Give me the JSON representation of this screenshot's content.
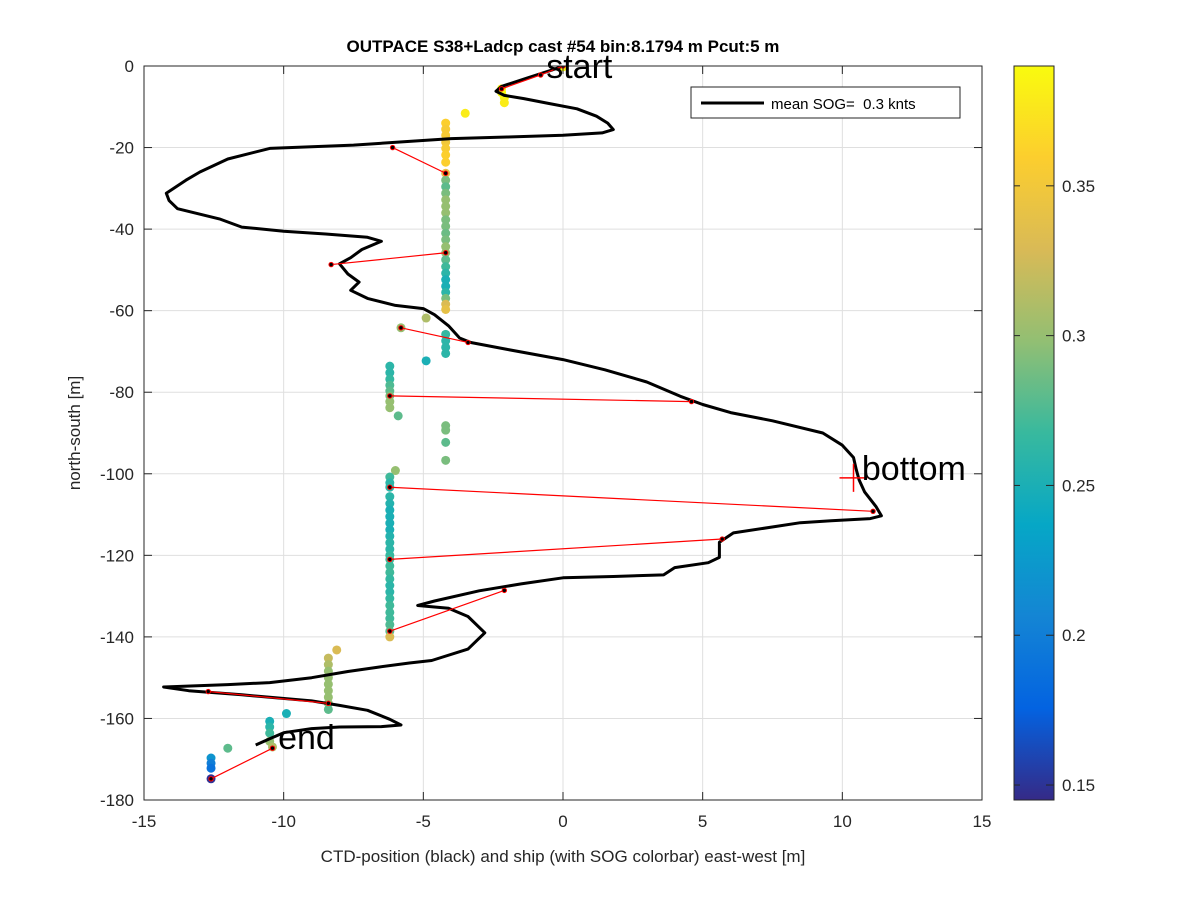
{
  "chart_data": {
    "type": "scatter",
    "title": "OUTPACE S38+Ladcp cast #54 bin:8.1794 m  Pcut:5 m",
    "xlabel": "CTD-position (black) and ship (with SOG colorbar) east-west [m]",
    "ylabel": "north-south [m]",
    "xlim": [
      -15,
      15
    ],
    "ylim": [
      -180,
      0
    ],
    "x_ticks": [
      "-15",
      "-10",
      "-5",
      "0",
      "5",
      "10",
      "15"
    ],
    "y_ticks": [
      "0",
      "-20",
      "-40",
      "-60",
      "-80",
      "-100",
      "-120",
      "-140",
      "-160",
      "-180"
    ],
    "grid": true,
    "legend": {
      "position": "top-right",
      "entries": [
        "mean SOG=  0.3 knts"
      ]
    },
    "annotations": [
      {
        "text": "start",
        "x": -0.6,
        "y": -3
      },
      {
        "text": "bottom",
        "x": 10.7,
        "y": -101.5
      },
      {
        "text": "end",
        "x": -10.2,
        "y": -167.5
      }
    ],
    "bottom_marker": {
      "x": 10.4,
      "y": -101
    },
    "colorbar": {
      "range": [
        0.145,
        0.39
      ],
      "ticks": [
        "0.15",
        "0.2",
        "0.25",
        "0.3",
        "0.35"
      ],
      "colormap": [
        "#352a87",
        "#0363e1",
        "#1485d4",
        "#06a7c6",
        "#38b99e",
        "#92bf73",
        "#d9ba56",
        "#fcce2e",
        "#f9fb0e"
      ]
    },
    "ctd_track_color": "#000000",
    "segment_color": "#ff0000",
    "ctd_track": [
      [
        0,
        0
      ],
      [
        -0.4,
        -1
      ],
      [
        -1.3,
        -3
      ],
      [
        -2.2,
        -5
      ],
      [
        -2.4,
        -6.2
      ],
      [
        -2.1,
        -7.2
      ],
      [
        -1.4,
        -8
      ],
      [
        -0.5,
        -9.2
      ],
      [
        0.5,
        -10.5
      ],
      [
        1.2,
        -12.3
      ],
      [
        1.6,
        -14
      ],
      [
        1.8,
        -15.6
      ],
      [
        1.4,
        -16.4
      ],
      [
        0,
        -17
      ],
      [
        -2,
        -17.4
      ],
      [
        -4,
        -17.8
      ],
      [
        -5.5,
        -18.5
      ],
      [
        -7.5,
        -19.4
      ],
      [
        -9,
        -19.8
      ],
      [
        -10.5,
        -20.2
      ],
      [
        -12,
        -22.8
      ],
      [
        -13,
        -26
      ],
      [
        -13.5,
        -28
      ],
      [
        -14.2,
        -31.2
      ],
      [
        -14.1,
        -33
      ],
      [
        -13.8,
        -35
      ],
      [
        -12.3,
        -37.5
      ],
      [
        -11.5,
        -39.5
      ],
      [
        -10,
        -40.5
      ],
      [
        -8.5,
        -41.2
      ],
      [
        -7,
        -42
      ],
      [
        -6.5,
        -43
      ],
      [
        -7.2,
        -45
      ],
      [
        -7.6,
        -47
      ],
      [
        -8,
        -48.5
      ],
      [
        -7.7,
        -51
      ],
      [
        -7.3,
        -53
      ],
      [
        -7.6,
        -55
      ],
      [
        -7,
        -57
      ],
      [
        -6,
        -58.7
      ],
      [
        -5,
        -59.5
      ],
      [
        -4.6,
        -61
      ],
      [
        -4.1,
        -63.7
      ],
      [
        -3.7,
        -66.7
      ],
      [
        -3.3,
        -67.8
      ],
      [
        -2,
        -69.5
      ],
      [
        0,
        -72
      ],
      [
        1.5,
        -74.5
      ],
      [
        3,
        -77.5
      ],
      [
        4.2,
        -81
      ],
      [
        5,
        -83
      ],
      [
        6,
        -85
      ],
      [
        7.5,
        -87
      ],
      [
        9.3,
        -90
      ],
      [
        10,
        -93
      ],
      [
        10.4,
        -96
      ],
      [
        10.5,
        -99
      ],
      [
        10.6,
        -101.5
      ],
      [
        10.8,
        -104.5
      ],
      [
        11.2,
        -108
      ],
      [
        11.4,
        -110.3
      ],
      [
        11,
        -111
      ],
      [
        9.6,
        -111.5
      ],
      [
        8.5,
        -112
      ],
      [
        6.1,
        -114.5
      ],
      [
        5.6,
        -116.8
      ],
      [
        5.6,
        -120.5
      ],
      [
        5.2,
        -121.8
      ],
      [
        4,
        -123
      ],
      [
        3.6,
        -124.8
      ],
      [
        1.8,
        -125.2
      ],
      [
        0,
        -125.5
      ],
      [
        -1.5,
        -127
      ],
      [
        -3,
        -128.7
      ],
      [
        -4.6,
        -131.2
      ],
      [
        -5.2,
        -132.3
      ],
      [
        -4.1,
        -133
      ],
      [
        -3.4,
        -135
      ],
      [
        -2.8,
        -139
      ],
      [
        -3.4,
        -143
      ],
      [
        -4.7,
        -145.8
      ],
      [
        -5.5,
        -146.4
      ],
      [
        -6.6,
        -147.4
      ],
      [
        -7.7,
        -148.5
      ],
      [
        -9,
        -150
      ],
      [
        -10.5,
        -151.2
      ],
      [
        -12,
        -151.7
      ],
      [
        -14.3,
        -152.3
      ],
      [
        -13.4,
        -153.2
      ],
      [
        -11.5,
        -154.2
      ],
      [
        -9,
        -155.7
      ],
      [
        -8,
        -156.8
      ],
      [
        -7,
        -158
      ],
      [
        -6.2,
        -160.2
      ],
      [
        -5.8,
        -161.6
      ],
      [
        -6.5,
        -162
      ],
      [
        -8,
        -162.1
      ],
      [
        -9,
        -162.5
      ],
      [
        -10,
        -163.5
      ],
      [
        -10.5,
        -165
      ],
      [
        -11,
        -166.5
      ]
    ],
    "segments": [
      [
        [
          0,
          0
        ],
        [
          -0.8,
          -2.2
        ]
      ],
      [
        [
          -0.8,
          -2.2
        ],
        [
          -2.2,
          -5.6
        ]
      ],
      [
        [
          -6.1,
          -20
        ],
        [
          -4.2,
          -26.3
        ]
      ],
      [
        [
          -8.3,
          -48.7
        ],
        [
          -4.2,
          -45.8
        ]
      ],
      [
        [
          -5.8,
          -64.2
        ],
        [
          -3.4,
          -67.8
        ]
      ],
      [
        [
          -6.2,
          -80.9
        ],
        [
          4.6,
          -82.3
        ]
      ],
      [
        [
          -6.2,
          -103.3
        ],
        [
          11.1,
          -109.2
        ]
      ],
      [
        [
          -6.2,
          -121
        ],
        [
          5.7,
          -116
        ]
      ],
      [
        [
          -6.2,
          -138.6
        ],
        [
          -2.1,
          -128.6
        ]
      ],
      [
        [
          -8.4,
          -156.3
        ],
        [
          -12.7,
          -153.4
        ]
      ],
      [
        [
          -10.4,
          -167.3
        ],
        [
          -12.6,
          -174.8
        ]
      ]
    ],
    "ship_points": [
      {
        "x": 0,
        "y": -0.2,
        "sog": 0.39
      },
      {
        "x": -2.2,
        "y": -5.6,
        "sog": 0.385
      },
      {
        "x": -2.2,
        "y": -6.5,
        "sog": 0.39
      },
      {
        "x": -2.1,
        "y": -7.8,
        "sog": 0.385
      },
      {
        "x": -2.1,
        "y": -9,
        "sog": 0.38
      },
      {
        "x": -3.5,
        "y": -11.6,
        "sog": 0.38
      },
      {
        "x": -4.2,
        "y": -14,
        "sog": 0.36
      },
      {
        "x": -4.2,
        "y": -15.5,
        "sog": 0.355
      },
      {
        "x": -4.2,
        "y": -17,
        "sog": 0.355
      },
      {
        "x": -4.2,
        "y": -18.7,
        "sog": 0.35
      },
      {
        "x": -4.2,
        "y": -20.2,
        "sog": 0.355
      },
      {
        "x": -4.2,
        "y": -21.8,
        "sog": 0.36
      },
      {
        "x": -4.2,
        "y": -23.6,
        "sog": 0.36
      },
      {
        "x": -4.2,
        "y": -26.3,
        "sog": 0.34
      },
      {
        "x": -4.2,
        "y": -28,
        "sog": 0.29
      },
      {
        "x": -4.2,
        "y": -29.6,
        "sog": 0.28
      },
      {
        "x": -4.2,
        "y": -31.2,
        "sog": 0.29
      },
      {
        "x": -4.2,
        "y": -32.8,
        "sog": 0.3
      },
      {
        "x": -4.2,
        "y": -34.4,
        "sog": 0.3
      },
      {
        "x": -4.2,
        "y": -36,
        "sog": 0.3
      },
      {
        "x": -4.2,
        "y": -37.7,
        "sog": 0.29
      },
      {
        "x": -4.2,
        "y": -39.3,
        "sog": 0.29
      },
      {
        "x": -4.2,
        "y": -41,
        "sog": 0.285
      },
      {
        "x": -4.2,
        "y": -42.6,
        "sog": 0.29
      },
      {
        "x": -4.2,
        "y": -44.3,
        "sog": 0.3
      },
      {
        "x": -4.2,
        "y": -45.8,
        "sog": 0.3
      },
      {
        "x": -4.2,
        "y": -47.5,
        "sog": 0.28
      },
      {
        "x": -4.2,
        "y": -49.2,
        "sog": 0.27
      },
      {
        "x": -4.2,
        "y": -50.8,
        "sog": 0.26
      },
      {
        "x": -4.2,
        "y": -52.4,
        "sog": 0.25
      },
      {
        "x": -4.2,
        "y": -54,
        "sog": 0.25
      },
      {
        "x": -4.2,
        "y": -55.5,
        "sog": 0.26
      },
      {
        "x": -4.2,
        "y": -57,
        "sog": 0.29
      },
      {
        "x": -4.2,
        "y": -58.4,
        "sog": 0.33
      },
      {
        "x": -4.2,
        "y": -59.7,
        "sog": 0.34
      },
      {
        "x": -4.9,
        "y": -61.8,
        "sog": 0.31
      },
      {
        "x": -5.8,
        "y": -64.2,
        "sog": 0.3
      },
      {
        "x": -4.2,
        "y": -65.8,
        "sog": 0.265
      },
      {
        "x": -4.2,
        "y": -67.4,
        "sog": 0.26
      },
      {
        "x": -4.2,
        "y": -69,
        "sog": 0.26
      },
      {
        "x": -4.2,
        "y": -70.5,
        "sog": 0.26
      },
      {
        "x": -4.9,
        "y": -72.3,
        "sog": 0.25
      },
      {
        "x": -6.2,
        "y": -73.6,
        "sog": 0.26
      },
      {
        "x": -6.2,
        "y": -75.2,
        "sog": 0.26
      },
      {
        "x": -6.2,
        "y": -76.8,
        "sog": 0.265
      },
      {
        "x": -6.2,
        "y": -78.3,
        "sog": 0.275
      },
      {
        "x": -6.2,
        "y": -79.7,
        "sog": 0.28
      },
      {
        "x": -6.2,
        "y": -80.9,
        "sog": 0.29
      },
      {
        "x": -6.2,
        "y": -82.3,
        "sog": 0.3
      },
      {
        "x": -6.2,
        "y": -83.8,
        "sog": 0.3
      },
      {
        "x": -5.9,
        "y": -85.8,
        "sog": 0.28
      },
      {
        "x": -4.2,
        "y": -88.2,
        "sog": 0.29
      },
      {
        "x": -4.2,
        "y": -89.3,
        "sog": 0.29
      },
      {
        "x": -4.2,
        "y": -92.3,
        "sog": 0.28
      },
      {
        "x": -4.2,
        "y": -96.7,
        "sog": 0.29
      },
      {
        "x": -6.0,
        "y": -99.2,
        "sog": 0.3
      },
      {
        "x": -6.2,
        "y": -100.8,
        "sog": 0.27
      },
      {
        "x": -6.2,
        "y": -102.2,
        "sog": 0.26
      },
      {
        "x": -6.2,
        "y": -103.3,
        "sog": 0.26
      },
      {
        "x": -6.2,
        "y": -105.6,
        "sog": 0.26
      },
      {
        "x": -6.2,
        "y": -107.3,
        "sog": 0.255
      },
      {
        "x": -6.2,
        "y": -108.9,
        "sog": 0.25
      },
      {
        "x": -6.2,
        "y": -110.5,
        "sog": 0.25
      },
      {
        "x": -6.2,
        "y": -112.1,
        "sog": 0.25
      },
      {
        "x": -6.2,
        "y": -113.7,
        "sog": 0.25
      },
      {
        "x": -6.2,
        "y": -115.3,
        "sog": 0.255
      },
      {
        "x": -6.2,
        "y": -116.9,
        "sog": 0.26
      },
      {
        "x": -6.2,
        "y": -118.5,
        "sog": 0.26
      },
      {
        "x": -6.2,
        "y": -120,
        "sog": 0.265
      },
      {
        "x": -6.2,
        "y": -121,
        "sog": 0.27
      },
      {
        "x": -6.2,
        "y": -122.6,
        "sog": 0.27
      },
      {
        "x": -6.2,
        "y": -124.2,
        "sog": 0.27
      },
      {
        "x": -6.2,
        "y": -125.8,
        "sog": 0.265
      },
      {
        "x": -6.2,
        "y": -127.4,
        "sog": 0.26
      },
      {
        "x": -6.2,
        "y": -129,
        "sog": 0.26
      },
      {
        "x": -6.2,
        "y": -130.6,
        "sog": 0.265
      },
      {
        "x": -6.2,
        "y": -132.3,
        "sog": 0.27
      },
      {
        "x": -6.2,
        "y": -134,
        "sog": 0.27
      },
      {
        "x": -6.2,
        "y": -135.5,
        "sog": 0.27
      },
      {
        "x": -6.2,
        "y": -137,
        "sog": 0.275
      },
      {
        "x": -6.2,
        "y": -138.6,
        "sog": 0.28
      },
      {
        "x": -6.2,
        "y": -140,
        "sog": 0.33
      },
      {
        "x": -8.1,
        "y": -143.2,
        "sog": 0.33
      },
      {
        "x": -8.4,
        "y": -145.2,
        "sog": 0.32
      },
      {
        "x": -8.4,
        "y": -146.8,
        "sog": 0.31
      },
      {
        "x": -8.4,
        "y": -148.4,
        "sog": 0.3
      },
      {
        "x": -8.4,
        "y": -150,
        "sog": 0.3
      },
      {
        "x": -8.4,
        "y": -151.6,
        "sog": 0.3
      },
      {
        "x": -8.4,
        "y": -153.2,
        "sog": 0.3
      },
      {
        "x": -8.4,
        "y": -154.8,
        "sog": 0.3
      },
      {
        "x": -8.4,
        "y": -156.3,
        "sog": 0.3
      },
      {
        "x": -8.4,
        "y": -157.8,
        "sog": 0.28
      },
      {
        "x": -9.9,
        "y": -158.8,
        "sog": 0.25
      },
      {
        "x": -10.5,
        "y": -160.7,
        "sog": 0.25
      },
      {
        "x": -10.5,
        "y": -162.1,
        "sog": 0.26
      },
      {
        "x": -10.5,
        "y": -163.6,
        "sog": 0.27
      },
      {
        "x": -10.5,
        "y": -165.6,
        "sog": 0.3
      },
      {
        "x": -10.4,
        "y": -167,
        "sog": 0.31
      },
      {
        "x": -12.0,
        "y": -167.3,
        "sog": 0.28
      },
      {
        "x": -12.6,
        "y": -169.7,
        "sog": 0.22
      },
      {
        "x": -12.6,
        "y": -171,
        "sog": 0.2
      },
      {
        "x": -12.6,
        "y": -172.2,
        "sog": 0.19
      },
      {
        "x": -12.6,
        "y": -174.8,
        "sog": 0.15
      }
    ]
  }
}
